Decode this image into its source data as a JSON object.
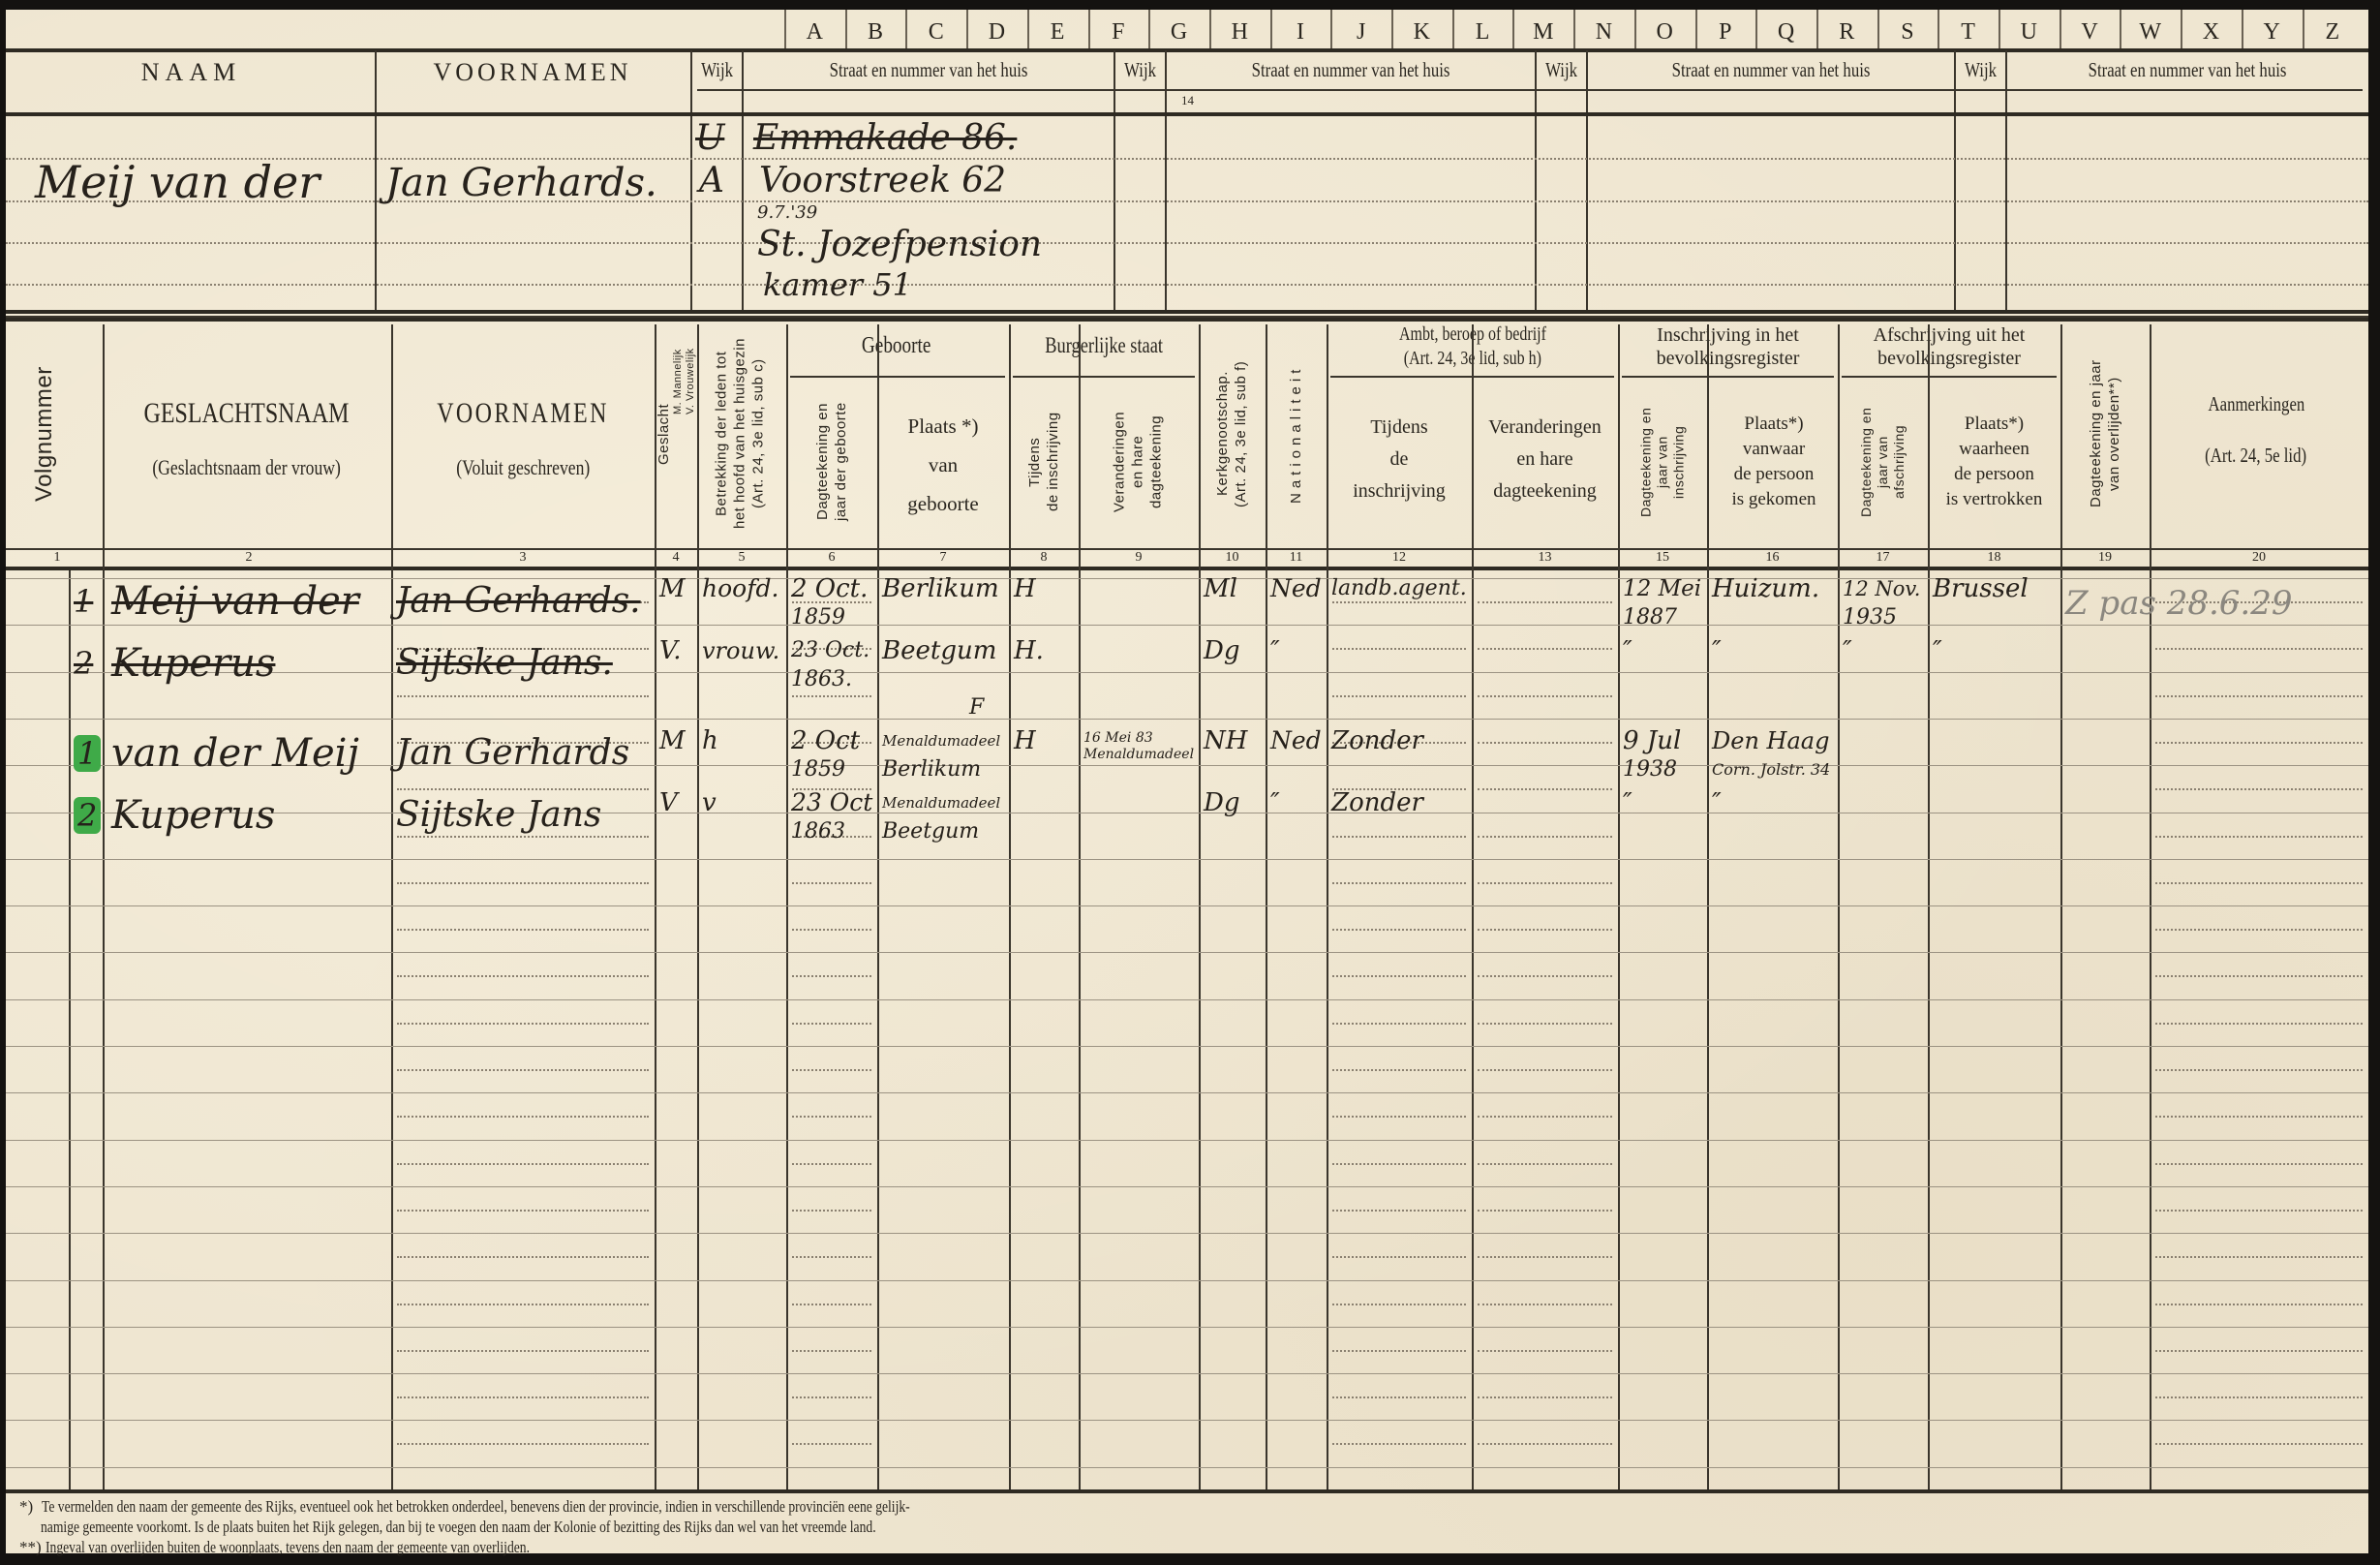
{
  "letters": [
    "A",
    "B",
    "C",
    "D",
    "E",
    "F",
    "G",
    "H",
    "I",
    "J",
    "K",
    "L",
    "M",
    "N",
    "O",
    "P",
    "Q",
    "R",
    "S",
    "T",
    "U",
    "V",
    "W",
    "X",
    "Y",
    "Z"
  ],
  "top_header": {
    "naam": "NAAM",
    "voornamen": "VOORNAMEN",
    "wijk": "Wijk",
    "straat": "Straat en nummer van het huis",
    "column_number": "14"
  },
  "head_of_household": {
    "naam": "Meij van der",
    "voornamen": "Jan Gerhards.",
    "address_1": {
      "wijk": "U",
      "street": "Emmakade 86."
    },
    "address_2": {
      "wijk": "A",
      "street": "Voorstreek 62"
    },
    "address_2_date": "9.7.'39",
    "address_2_line2": "St. Jozefpension",
    "address_2_line3": "kamer 51"
  },
  "table_header": {
    "volgnummer": "Volgnummer",
    "geslachtsnaam": "GESLACHTSNAAM",
    "geslachtsnaam_sub": "(Geslachtsnaam der vrouw)",
    "voornamen": "VOORNAMEN",
    "voornamen_sub": "(Voluit geschreven)",
    "geslacht": "Geslacht",
    "geslacht_m": "M. Mannelijk",
    "geslacht_v": "V. Vrouwelijk",
    "betrekking": [
      "Betrekking der leden tot",
      "het hoofd van het huisgezin",
      "(Art. 24, 3e lid, sub c)"
    ],
    "geboorte": "Geboorte",
    "geboorte_datum": [
      "Dagteekening en",
      "jaar der geboorte"
    ],
    "geboorte_plaats": [
      "Plaats *)",
      "van",
      "geboorte"
    ],
    "burgerlijke_staat": "Burgerlijke staat",
    "bs_tijdens": [
      "Tijdens",
      "de inschrijving"
    ],
    "bs_veranderingen": [
      "Veranderingen",
      "en hare",
      "dagteekening"
    ],
    "kerkgenootschap": [
      "Kerkgenootschap.",
      "(Art. 24, 3e lid, sub f)"
    ],
    "nationaliteit": "Nationaliteit",
    "ambt": "Ambt, beroep of bedrijf",
    "ambt_sub": "(Art. 24, 3e lid, sub h)",
    "ambt_tijdens": [
      "Tijdens",
      "de",
      "inschrijving"
    ],
    "ambt_veranderingen": [
      "Veranderingen",
      "en hare",
      "dagteekening"
    ],
    "inschrijving": [
      "Inschrijving in het",
      "bevolkingsregister"
    ],
    "inschrijving_datum": [
      "Dagteekening en",
      "jaar van",
      "inschrijving"
    ],
    "inschrijving_plaats": [
      "Plaats*)",
      "vanwaar",
      "de persoon",
      "is gekomen"
    ],
    "afschrijving": [
      "Afschrijving uit het",
      "bevolkingsregister"
    ],
    "afschrijving_datum": [
      "Dagteekening en",
      "jaar van",
      "afschrijving"
    ],
    "afschrijving_plaats": [
      "Plaats*)",
      "waarheen",
      "de persoon",
      "is vertrokken"
    ],
    "overlijden": [
      "Dagteekening en jaar",
      "van overlijden**)"
    ],
    "aanmerkingen": "Aanmerkingen",
    "aanmerkingen_sub": "(Art. 24, 5e lid)"
  },
  "column_numbers": [
    "1",
    "2",
    "3",
    "4",
    "5",
    "6",
    "7",
    "8",
    "9",
    "10",
    "11",
    "12",
    "13",
    "15",
    "16",
    "17",
    "18",
    "19",
    "20"
  ],
  "persons": [
    {
      "struck": true,
      "marker": "",
      "volgnummer": "1",
      "geslachtsnaam": "Meij van der",
      "voornamen": "Jan Gerhards.",
      "geslacht": "M",
      "betrekking": "hoofd.",
      "geboorte_datum": [
        "2 Oct.",
        "1859"
      ],
      "geboorte_plaats": [
        "Berlikum"
      ],
      "burgerlijke_staat": "H",
      "kerkgenootschap": "Ml",
      "nationaliteit": "Ned",
      "beroep": "landb.agent.",
      "inschrijving_datum": [
        "12 Mei",
        "1887"
      ],
      "inschrijving_plaats": [
        "Huizum."
      ],
      "afschrijving_datum": [
        "12 Nov.",
        "1935"
      ],
      "afschrijving_plaats": [
        "Brussel"
      ],
      "aanmerkingen": "Z pas 28.6.29"
    },
    {
      "struck": true,
      "marker": "",
      "volgnummer": "2",
      "geslachtsnaam": "Kuperus",
      "voornamen": "Sijtske Jans.",
      "geslacht": "V.",
      "betrekking": "vrouw.",
      "geboorte_datum": [
        "23 Oct.",
        "1863."
      ],
      "geboorte_plaats": [
        "Beetgum"
      ],
      "burgerlijke_staat": "H.",
      "kerkgenootschap": "Dg",
      "nationaliteit": "″",
      "inschrijving_datum": [
        "″"
      ],
      "inschrijving_plaats": [
        "″"
      ],
      "afschrijving_datum": [
        "″"
      ],
      "afschrijving_plaats": [
        "″"
      ]
    },
    {
      "struck": false,
      "marker": "#3faa48",
      "volgnummer": "1",
      "geslachtsnaam": "van der Meij",
      "voornamen": "Jan Gerhards",
      "geslacht": "M",
      "betrekking": "h",
      "geboorte_datum": [
        "2 Oct",
        "1859"
      ],
      "geboorte_plaats": [
        "Menaldumadeel",
        "Berlikum"
      ],
      "geboorte_plaats_note": "F",
      "burgerlijke_staat": "H",
      "bs_veranderingen": "16 Mei 83 Menaldumadeel",
      "kerkgenootschap": "NH",
      "nationaliteit": "Ned",
      "beroep": "Zonder",
      "inschrijving_datum": [
        "9 Jul",
        "1938"
      ],
      "inschrijving_plaats": [
        "Den Haag",
        "Corn. Jolstr. 34"
      ]
    },
    {
      "struck": false,
      "marker": "#3faa48",
      "volgnummer": "2",
      "geslachtsnaam": "Kuperus",
      "voornamen": "Sijtske Jans",
      "geslacht": "V",
      "betrekking": "v",
      "geboorte_datum": [
        "23 Oct",
        "1863"
      ],
      "geboorte_plaats": [
        "Menaldumadeel",
        "Beetgum"
      ],
      "kerkgenootschap": "Dg",
      "nationaliteit": "″",
      "beroep": "Zonder",
      "inschrijving_datum": [
        "″"
      ],
      "inschrijving_plaats": [
        "″"
      ]
    }
  ],
  "footnotes": {
    "note1_mark": "*)",
    "note1_line1": "Te vermelden den naam der gemeente des Rijks, eventueel ook het betrokken onderdeel, benevens dien der provincie, indien in verschillende provinciën eene gelijk-",
    "note1_line2": "namige gemeente voorkomt.  Is de plaats buiten het Rijk gelegen, dan bij te voegen den naam der Kolonie of bezitting des Rijks dan wel van het vreemde land.",
    "note2_mark": "**)",
    "note2_line1": "Ingeval van overlijden buiten de woonplaats, tevens den naam der gemeente van overlijden."
  },
  "colors": {
    "paper": "#efe6d1",
    "ink": "#26211b",
    "pencil": "#8b877f",
    "highlight": "#3faa48"
  }
}
